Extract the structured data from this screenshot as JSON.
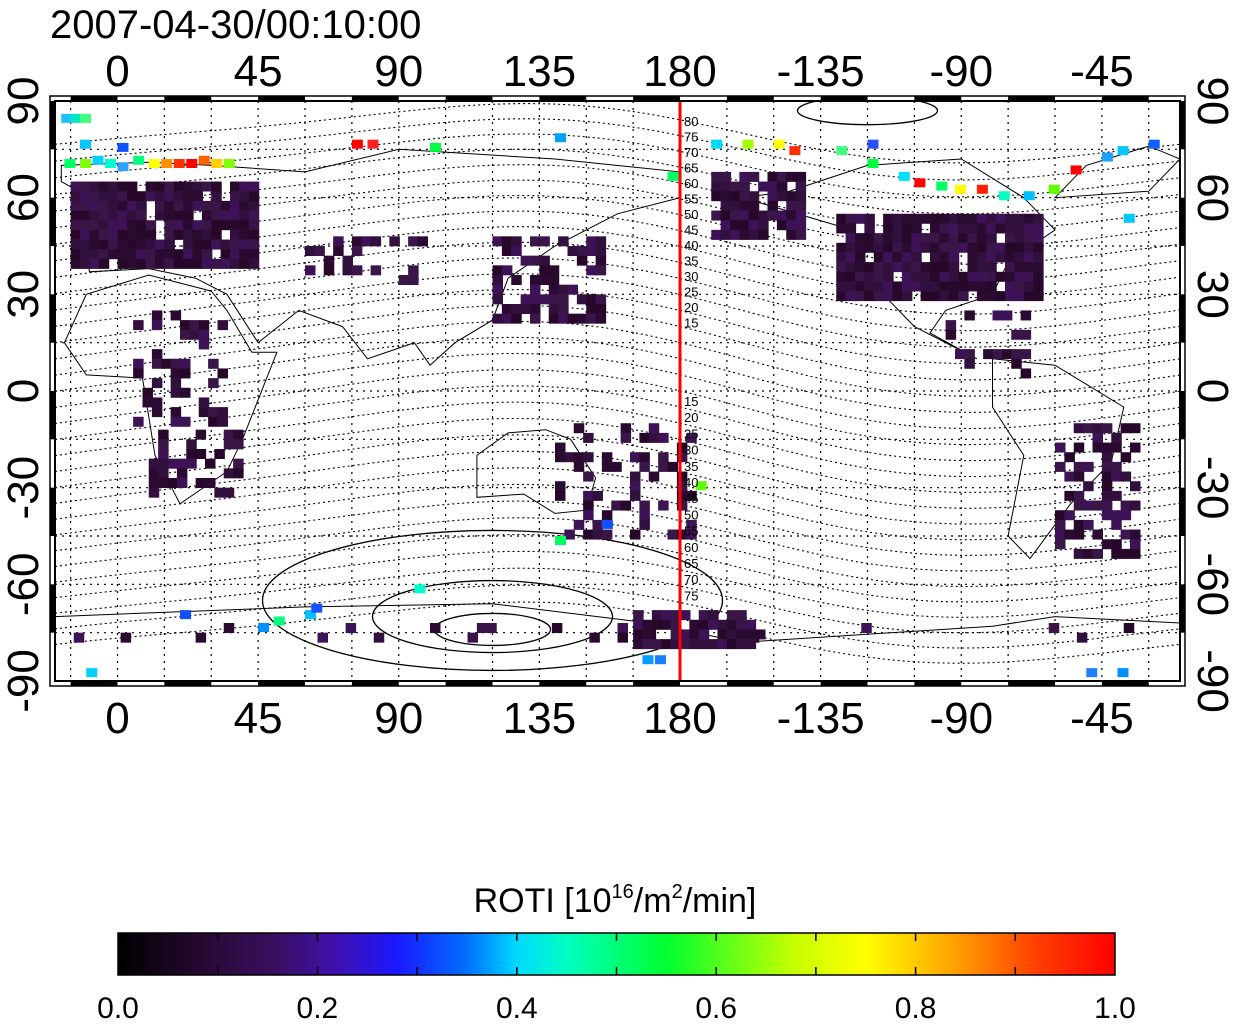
{
  "title": "2007-04-30/00:10:00",
  "map": {
    "lon_ticks": [
      "0",
      "45",
      "90",
      "135",
      "180",
      "-135",
      "-90",
      "-45"
    ],
    "lat_ticks": [
      "90",
      "60",
      "30",
      "0",
      "-30",
      "-60",
      "-90"
    ],
    "lon_range": [
      -20,
      340
    ],
    "lat_range": [
      -90,
      90
    ],
    "grid": "dotted every 15 degrees",
    "meridian_marker": {
      "longitude": 180,
      "color": "#ff0000"
    },
    "contour_labels": [
      "80",
      "75",
      "70",
      "65",
      "60",
      "55",
      "50",
      "45",
      "40",
      "35",
      "30",
      "25",
      "20",
      "15",
      "15",
      "20",
      "25",
      "30",
      "35",
      "40",
      "45",
      "50",
      "55",
      "60",
      "65",
      "70",
      "75"
    ]
  },
  "colorbar": {
    "label": "ROTI  [10",
    "label_sup1": "16",
    "label_mid": "/m",
    "label_sup2": "2",
    "label_end": "/min]",
    "ticks": [
      "0.0",
      "0.2",
      "0.4",
      "0.6",
      "0.8",
      "1.0"
    ],
    "range": [
      0.0,
      1.0
    ],
    "colors": [
      "#000000",
      "#2a0a3a",
      "#3a0f60",
      "#4a10a0",
      "#2a10ff",
      "#0050ff",
      "#00c0ff",
      "#00ffd0",
      "#00ff40",
      "#a0ff00",
      "#ffff00",
      "#ffb000",
      "#ff5000",
      "#ff0000"
    ]
  }
}
